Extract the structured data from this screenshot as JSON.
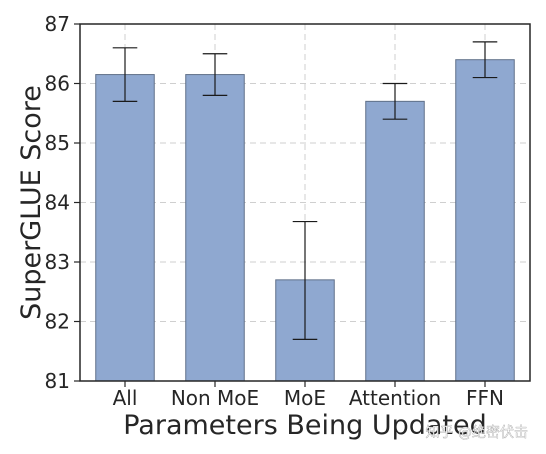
{
  "watermark": "知乎 @绝密伏击",
  "chart_data": {
    "type": "bar",
    "categories": [
      "All",
      "Non MoE",
      "MoE",
      "Attention",
      "FFN"
    ],
    "values": [
      86.15,
      86.15,
      82.7,
      85.7,
      86.4
    ],
    "error_low": [
      85.7,
      85.8,
      81.7,
      85.4,
      86.1
    ],
    "error_high": [
      86.6,
      86.5,
      83.68,
      86.0,
      86.7
    ],
    "xlabel": "Parameters Being Updated",
    "ylabel": "SuperGLUE Score",
    "ylim": [
      81,
      87
    ],
    "yticks": [
      81,
      82,
      83,
      84,
      85,
      86,
      87
    ],
    "grid": true,
    "bar_color": "#8fa8d0",
    "bar_edge_color": "#5f6f88",
    "error_color": "#1a1a1a",
    "grid_color": "#cfcfcf"
  }
}
